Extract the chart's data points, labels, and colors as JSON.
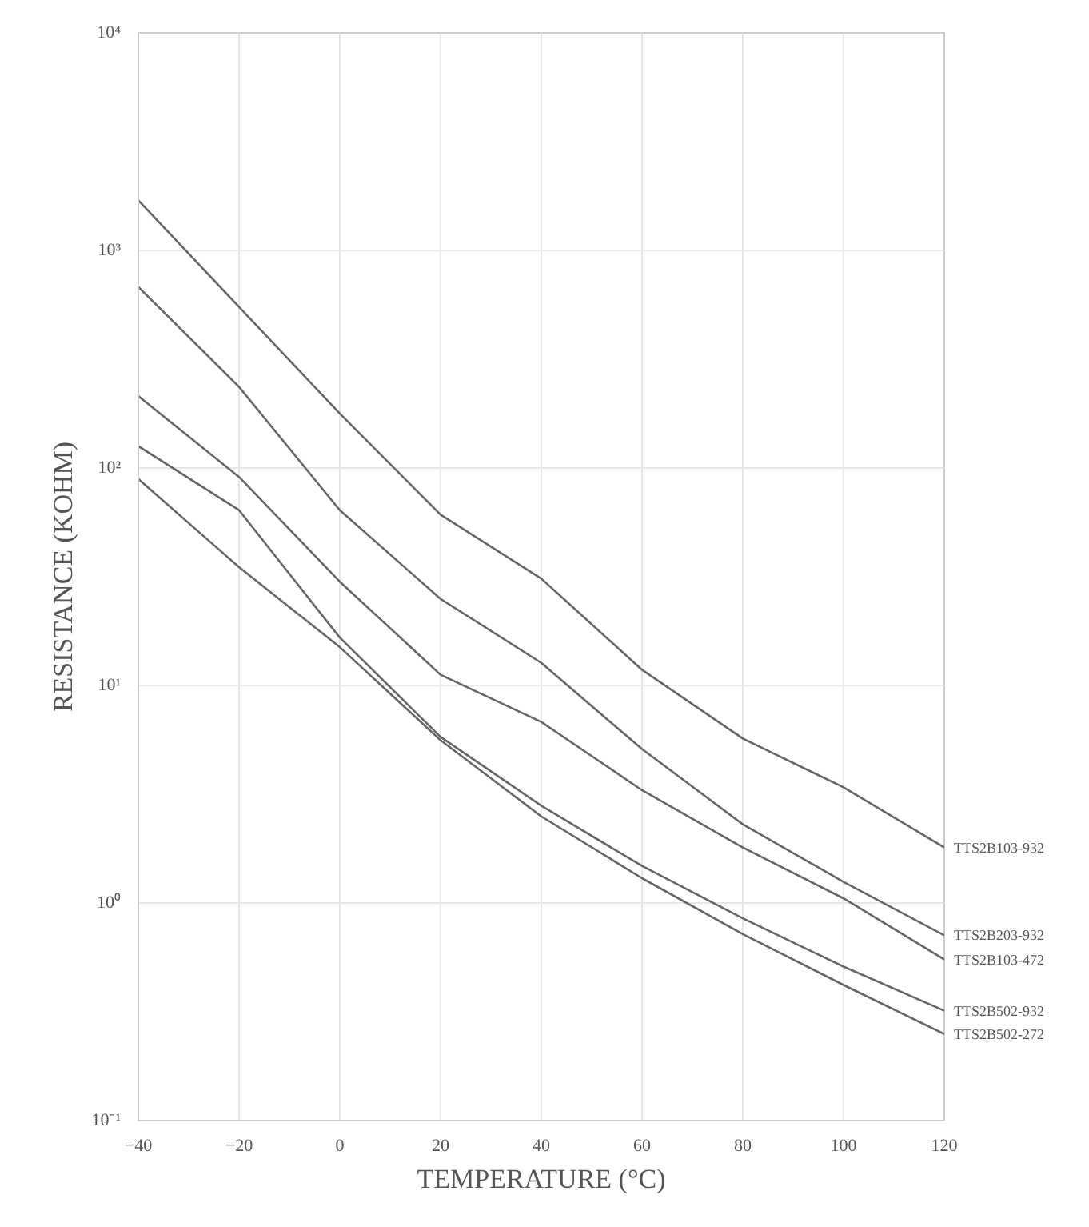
{
  "chart_data": {
    "type": "line",
    "xlabel": "TEMPERATURE (°C)",
    "ylabel": "RESISTANCE (KOHM)",
    "log": "y",
    "grid": true,
    "line_style": "solid",
    "marker": "none",
    "x": [
      -40,
      -20,
      0,
      20,
      40,
      60,
      80,
      100,
      120
    ],
    "xlim": [
      -40,
      120
    ],
    "xticks": [
      -40,
      -20,
      0,
      20,
      40,
      60,
      80,
      100,
      120
    ],
    "ylim": [
      0.1,
      10000
    ],
    "yticks": [
      {
        "value": 0.1,
        "label": "10⁻¹"
      },
      {
        "value": 1,
        "label": "10⁰"
      },
      {
        "value": 10,
        "label": "10¹"
      },
      {
        "value": 100,
        "label": "10²"
      },
      {
        "value": 1000,
        "label": "10³"
      },
      {
        "value": 10000,
        "label": "10⁴"
      }
    ],
    "series": [
      {
        "name": "TTS2B103-932",
        "color": "#666666",
        "values": [
          1700,
          550,
          178,
          61,
          31,
          11.8,
          5.7,
          3.4,
          1.8
        ]
      },
      {
        "name": "TTS2B203-932",
        "color": "#666666",
        "values": [
          680,
          236,
          64,
          25,
          12.7,
          5.1,
          2.3,
          1.25,
          0.71
        ]
      },
      {
        "name": "TTS2B103-472",
        "color": "#666666",
        "values": [
          214,
          91,
          30,
          11.2,
          6.8,
          3.3,
          1.8,
          1.05,
          0.55
        ]
      },
      {
        "name": "TTS2B502-932",
        "color": "#666666",
        "values": [
          126,
          64,
          16.6,
          5.8,
          2.8,
          1.48,
          0.85,
          0.51,
          0.32
        ]
      },
      {
        "name": "TTS2B502-272",
        "color": "#666666",
        "values": [
          89,
          35,
          15,
          5.6,
          2.5,
          1.3,
          0.72,
          0.42,
          0.25
        ]
      }
    ]
  }
}
